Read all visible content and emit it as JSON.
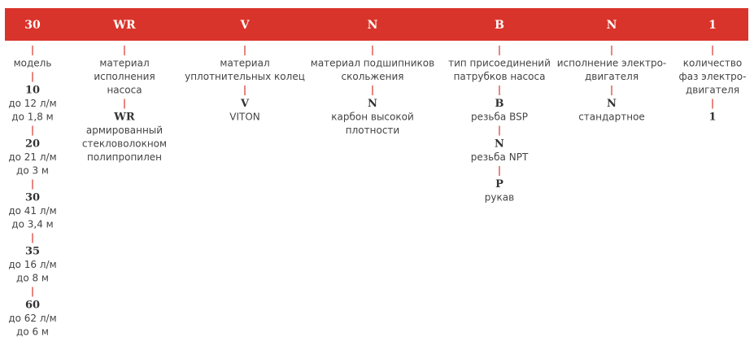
{
  "columns": [
    {
      "code": "30",
      "label": [
        "модель"
      ],
      "options": [
        {
          "code": "10",
          "desc": [
            "до 12 л/м",
            "до 1,8 м"
          ]
        },
        {
          "code": "20",
          "desc": [
            "до 21 л/м",
            "до 3 м"
          ]
        },
        {
          "code": "30",
          "desc": [
            "до 41 л/м",
            "до 3,4 м"
          ]
        },
        {
          "code": "35",
          "desc": [
            "до 16 л/м",
            "до 8 м"
          ]
        },
        {
          "code": "60",
          "desc": [
            "до 62 л/м",
            "до 6 м"
          ]
        }
      ]
    },
    {
      "code": "WR",
      "label": [
        "материал",
        "исполнения",
        "насоса"
      ],
      "options": [
        {
          "code": "WR",
          "desc": [
            "армированный",
            "стекловолокном",
            "полипропилен"
          ]
        }
      ]
    },
    {
      "code": "V",
      "label": [
        "материал",
        "уплотнительных колец"
      ],
      "options": [
        {
          "code": "V",
          "desc": [
            "VITON"
          ]
        }
      ]
    },
    {
      "code": "N",
      "label": [
        "материал подшипников",
        "скольжения"
      ],
      "options": [
        {
          "code": "N",
          "desc": [
            "карбон высокой",
            "плотности"
          ]
        }
      ]
    },
    {
      "code": "B",
      "label": [
        "тип присоединений",
        "патрубков насоса"
      ],
      "options": [
        {
          "code": "B",
          "desc": [
            "резьба BSP"
          ]
        },
        {
          "code": "N",
          "desc": [
            "резьба NPT"
          ]
        },
        {
          "code": "P",
          "desc": [
            "рукав"
          ]
        }
      ]
    },
    {
      "code": "N",
      "label": [
        "исполнение электро-",
        "двигателя"
      ],
      "options": [
        {
          "code": "N",
          "desc": [
            "стандартное"
          ]
        }
      ]
    },
    {
      "code": "1",
      "label": [
        "количество",
        "фаз электро-",
        "двигателя"
      ],
      "options": [
        {
          "code": "1",
          "desc": []
        }
      ]
    }
  ]
}
